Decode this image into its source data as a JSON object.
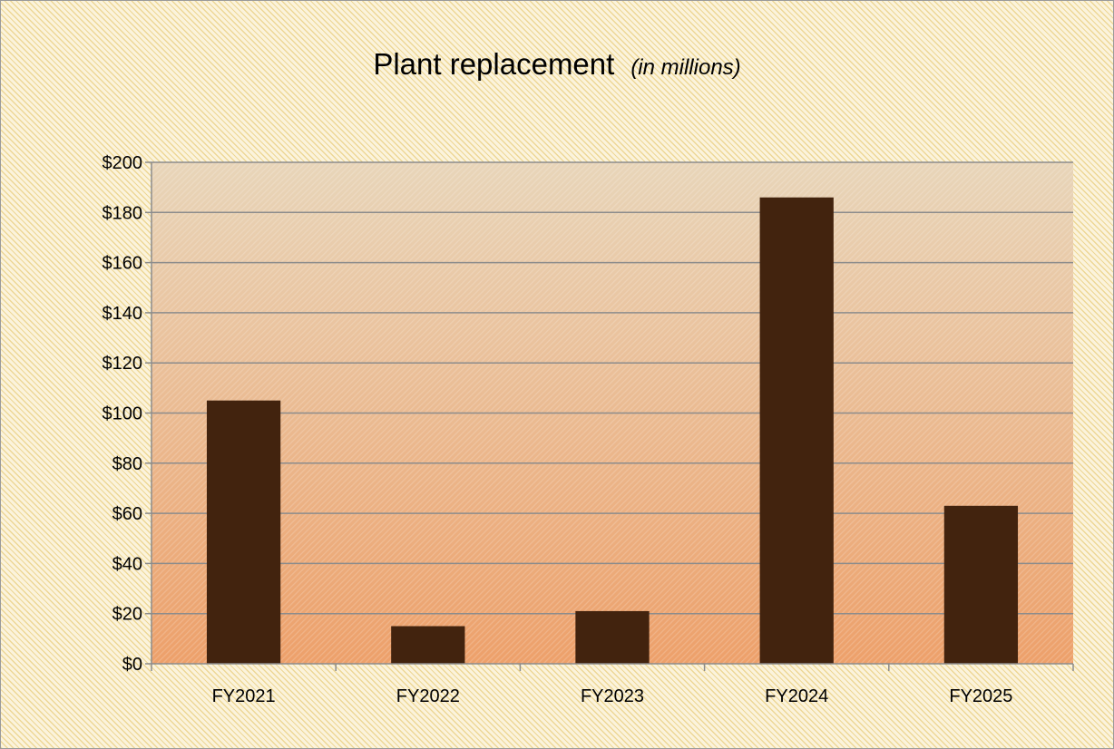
{
  "chart_data": {
    "type": "bar",
    "title": "Plant replacement",
    "subtitle": "(in millions)",
    "categories": [
      "FY2021",
      "FY2022",
      "FY2023",
      "FY2024",
      "FY2025"
    ],
    "values": [
      105,
      15,
      21,
      186,
      63
    ],
    "ylim": [
      0,
      200
    ],
    "ytick_step": 20,
    "y_tick_prefix": "$",
    "grid": true,
    "legend": "none",
    "colors": {
      "bar": "#42230e",
      "plot_top": "#e8d5b9",
      "plot_bottom": "#eda06a",
      "gridline": "#8c8c8c",
      "axis": "#8c8c8c",
      "frame_hatch": "#e2c05c"
    }
  }
}
